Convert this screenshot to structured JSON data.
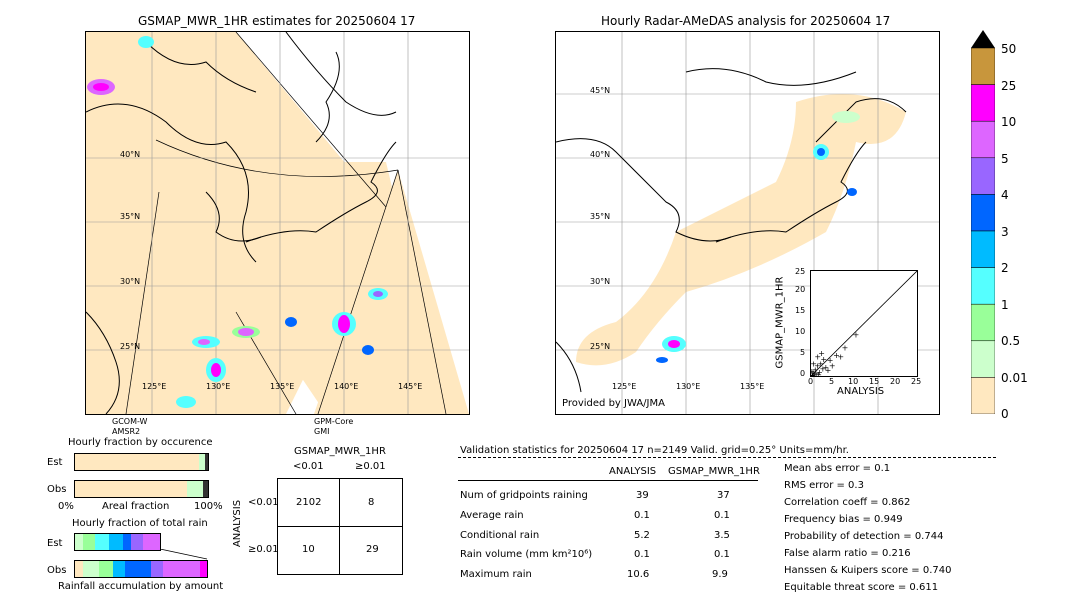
{
  "left_map": {
    "title": "GSMAP_MWR_1HR estimates for 20250604 17",
    "lat_labels": [
      "40°N",
      "35°N",
      "30°N",
      "25°N"
    ],
    "lon_labels": [
      "125°E",
      "130°E",
      "135°E",
      "140°E",
      "145°E"
    ],
    "sensor_left": "GCOM-W",
    "sensor_left2": "AMSR2",
    "sensor_right": "GPM-Core",
    "sensor_right2": "GMI"
  },
  "right_map": {
    "title": "Hourly Radar-AMeDAS analysis for 20250604 17",
    "lat_labels": [
      "45°N",
      "40°N",
      "35°N",
      "30°N",
      "25°N"
    ],
    "lon_labels": [
      "125°E",
      "130°E",
      "135°E"
    ],
    "credit": "Provided by JWA/JMA"
  },
  "scatter": {
    "xlabel": "ANALYSIS",
    "ylabel": "GSMAP_MWR_1HR",
    "ticks": [
      "0",
      "5",
      "10",
      "15",
      "20",
      "25"
    ]
  },
  "colorbar": {
    "labels": [
      "50",
      "25",
      "10",
      "5",
      "4",
      "3",
      "2",
      "1",
      "0.5",
      "0.01",
      "0"
    ],
    "colors": [
      "#c8963c",
      "#ff00ff",
      "#dd66ff",
      "#9966ff",
      "#0066ff",
      "#00bbff",
      "#55ffff",
      "#99ff99",
      "#ccffcc",
      "#ffe8c0"
    ]
  },
  "fraction_occurrence": {
    "title": "Hourly fraction by occurence",
    "row1": "Est",
    "row2": "Obs",
    "axis_left": "0%",
    "axis_mid": "Areal fraction",
    "axis_right": "100%"
  },
  "fraction_total": {
    "title": "Hourly fraction of total rain",
    "row1": "Est",
    "row2": "Obs",
    "footer": "Rainfall accumulation by amount"
  },
  "contingency": {
    "title": "GSMAP_MWR_1HR",
    "col1": "<0.01",
    "col2": "≥0.01",
    "row_title": "ANALYSIS",
    "row1": "<0.01",
    "row2": "≥0.01",
    "cells": [
      "2102",
      "8",
      "10",
      "29"
    ]
  },
  "validation": {
    "header": "Validation statistics for 20250604 17  n=2149 Valid. grid=0.25° Units=mm/hr.",
    "col_a": "ANALYSIS",
    "col_b": "GSMAP_MWR_1HR",
    "rows": [
      {
        "label": "Num of gridpoints raining",
        "a": "39",
        "b": "37"
      },
      {
        "label": "Average rain",
        "a": "0.1",
        "b": "0.1"
      },
      {
        "label": "Conditional rain",
        "a": "5.2",
        "b": "3.5"
      },
      {
        "label": "Rain volume (mm km²10⁶)",
        "a": "0.1",
        "b": "0.1"
      },
      {
        "label": "Maximum rain",
        "a": "10.6",
        "b": "9.9"
      }
    ],
    "scores": [
      "Mean abs error =    0.1",
      "RMS error =    0.3",
      "Correlation coeff =  0.862",
      "Frequency bias =  0.949",
      "Probability of detection =  0.744",
      "False alarm ratio =  0.216",
      "Hanssen & Kuipers score =  0.740",
      "Equitable threat score =  0.611"
    ]
  },
  "chart_data": {
    "type": "scatter",
    "xlabel": "ANALYSIS",
    "ylabel": "GSMAP_MWR_1HR",
    "xlim": [
      0,
      25
    ],
    "ylim": [
      0,
      25
    ],
    "points": [
      [
        0.3,
        0.2
      ],
      [
        0.5,
        0.8
      ],
      [
        0.8,
        0.4
      ],
      [
        1,
        1.5
      ],
      [
        1.2,
        0.6
      ],
      [
        1.5,
        2.5
      ],
      [
        2,
        1
      ],
      [
        2.3,
        3
      ],
      [
        2.8,
        1.8
      ],
      [
        3,
        4
      ],
      [
        0.6,
        3
      ],
      [
        1.8,
        0.3
      ],
      [
        3.5,
        2.2
      ],
      [
        4.5,
        3.8
      ],
      [
        5,
        2.5
      ],
      [
        6,
        5
      ],
      [
        7,
        4.6
      ],
      [
        8,
        6.8
      ],
      [
        10.6,
        9.9
      ],
      [
        0.2,
        1.2
      ],
      [
        1.6,
        4.6
      ],
      [
        2.5,
        5.5
      ],
      [
        0.4,
        0.1
      ],
      [
        4,
        1.4
      ]
    ]
  }
}
